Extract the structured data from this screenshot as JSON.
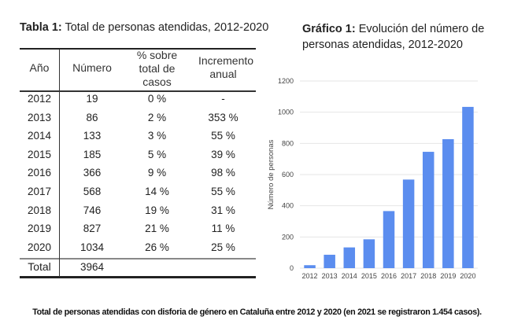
{
  "table": {
    "title_bold": "Tabla 1:",
    "title_rest": " Total de personas atendidas, 2012-2020",
    "headers": [
      "Año",
      "Número",
      "% sobre total de casos",
      "Incremento anual"
    ],
    "rows": [
      {
        "year": "2012",
        "number": "19",
        "pct": "0 %",
        "increment": "-"
      },
      {
        "year": "2013",
        "number": "86",
        "pct": "2 %",
        "increment": "353 %"
      },
      {
        "year": "2014",
        "number": "133",
        "pct": "3 %",
        "increment": "55 %"
      },
      {
        "year": "2015",
        "number": "185",
        "pct": "5 %",
        "increment": "39 %"
      },
      {
        "year": "2016",
        "number": "366",
        "pct": "9 %",
        "increment": "98 %"
      },
      {
        "year": "2017",
        "number": "568",
        "pct": "14 %",
        "increment": "55 %"
      },
      {
        "year": "2018",
        "number": "746",
        "pct": "19 %",
        "increment": "31 %"
      },
      {
        "year": "2019",
        "number": "827",
        "pct": "21 %",
        "increment": "11 %"
      },
      {
        "year": "2020",
        "number": "1034",
        "pct": "26 %",
        "increment": "25 %"
      }
    ],
    "total_label": "Total",
    "total_value": "3964"
  },
  "chart_title": {
    "bold": "Gráfico 1:",
    "rest": " Evolución del número de personas atendidas, 2012-2020"
  },
  "caption": "Total de personas atendidas con disforia de género en Cataluña entre 2012 y 2020 (en 2021 se registraron 1.454 casos).",
  "colors": {
    "bar": "#5b8def",
    "grid": "#e6e6e6"
  },
  "chart_data": {
    "type": "bar",
    "title": "Gráfico 1: Evolución del número de personas atendidas, 2012-2020",
    "categories": [
      "2012",
      "2013",
      "2014",
      "2015",
      "2016",
      "2017",
      "2018",
      "2019",
      "2020"
    ],
    "values": [
      19,
      86,
      133,
      185,
      366,
      568,
      746,
      827,
      1034
    ],
    "xlabel": "",
    "ylabel": "Número de personas",
    "ylim": [
      0,
      1200
    ],
    "yticks": [
      0,
      200,
      400,
      600,
      800,
      1000,
      1200
    ],
    "grid": true,
    "legend": "none"
  }
}
